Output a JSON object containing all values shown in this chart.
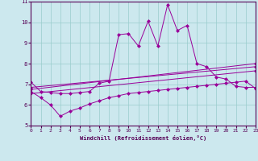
{
  "xlabel": "Windchill (Refroidissement éolien,°C)",
  "xlim": [
    0,
    23
  ],
  "ylim": [
    5,
    11
  ],
  "yticks": [
    5,
    6,
    7,
    8,
    9,
    10,
    11
  ],
  "xticks": [
    0,
    1,
    2,
    3,
    4,
    5,
    6,
    7,
    8,
    9,
    10,
    11,
    12,
    13,
    14,
    15,
    16,
    17,
    18,
    19,
    20,
    21,
    22,
    23
  ],
  "background_color": "#cce8ee",
  "grid_color": "#99cccc",
  "line_color": "#990099",
  "series1_x": [
    0,
    1,
    2,
    3,
    4,
    5,
    6,
    7,
    8,
    9,
    10,
    11,
    12,
    13,
    14,
    15,
    16,
    17,
    18,
    19,
    20,
    21,
    22,
    23
  ],
  "series1_y": [
    7.1,
    6.65,
    6.6,
    6.55,
    6.55,
    6.6,
    6.65,
    7.05,
    7.15,
    9.4,
    9.45,
    8.85,
    10.05,
    8.85,
    10.85,
    9.6,
    9.85,
    8.0,
    7.85,
    7.35,
    7.25,
    6.9,
    6.85,
    6.85
  ],
  "series2_x": [
    0,
    23
  ],
  "series2_y": [
    6.85,
    7.85
  ],
  "series3_x": [
    0,
    23
  ],
  "series3_y": [
    6.75,
    8.0
  ],
  "series4_x": [
    0,
    1,
    2,
    3,
    4,
    5,
    6,
    7,
    8,
    9,
    10,
    11,
    12,
    13,
    14,
    15,
    16,
    17,
    18,
    19,
    20,
    21,
    22,
    23
  ],
  "series4_y": [
    6.65,
    6.35,
    6.0,
    5.45,
    5.7,
    5.85,
    6.05,
    6.2,
    6.35,
    6.45,
    6.55,
    6.6,
    6.65,
    6.7,
    6.75,
    6.8,
    6.85,
    6.9,
    6.95,
    7.0,
    7.05,
    7.1,
    7.15,
    6.8
  ],
  "series5_x": [
    0,
    23
  ],
  "series5_y": [
    6.55,
    7.65
  ]
}
